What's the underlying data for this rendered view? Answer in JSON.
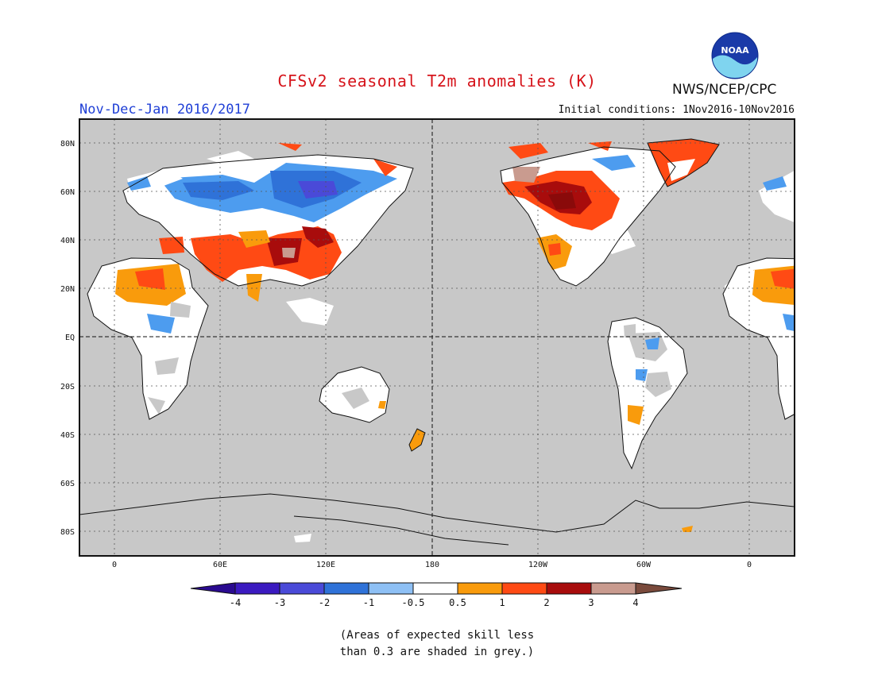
{
  "header": {
    "title": "CFSv2 seasonal T2m anomalies (K)",
    "period": "Nov-Dec-Jan 2016/2017",
    "initial_conditions": "Initial conditions: 1Nov2016-10Nov2016",
    "agency": "NWS/NCEP/CPC",
    "logo_text": "NOAA"
  },
  "map": {
    "lat_labels": [
      "80N",
      "60N",
      "40N",
      "20N",
      "EQ",
      "20S",
      "40S",
      "60S",
      "80S"
    ],
    "lon_labels": [
      "0",
      "60E",
      "120E",
      "180",
      "120W",
      "60W",
      "0"
    ],
    "background_color": "#c8c8c8"
  },
  "colorbar": {
    "labels": [
      "-4",
      "-3",
      "-2",
      "-1",
      "-0.5",
      "0.5",
      "1",
      "2",
      "3",
      "4"
    ],
    "colors": [
      "#3b1ac0",
      "#4a4ad8",
      "#2f72d8",
      "#4d9cef",
      "#8ec0f5",
      "#ffffff",
      "#f99b0c",
      "#ff4a14",
      "#a80c0c",
      "#c99b8f"
    ],
    "under_color": "#2a0a90",
    "over_color": "#7a4a3c"
  },
  "footnote": {
    "line1": "(Areas of expected skill less",
    "line2": "than 0.3 are shaded in grey.)"
  }
}
